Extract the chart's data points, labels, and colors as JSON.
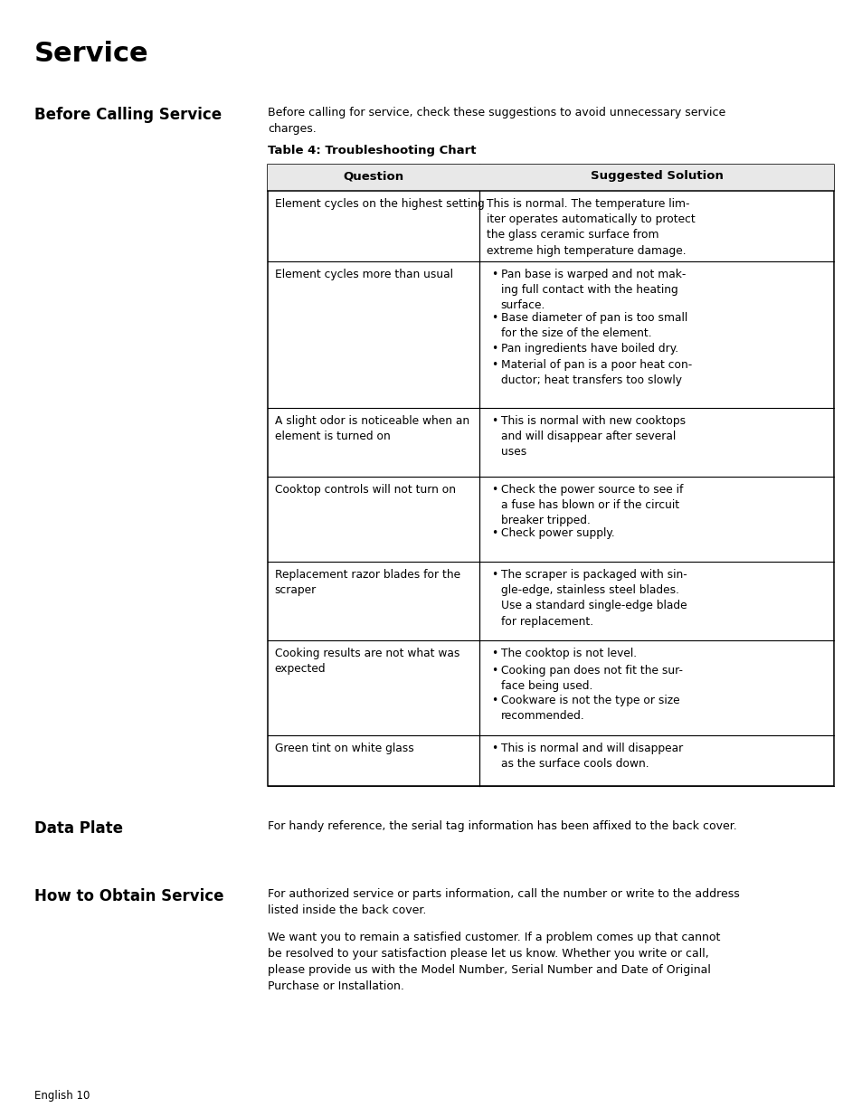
{
  "page_title": "Service",
  "section1_heading": "Before Calling Service",
  "section1_intro": "Before calling for service, check these suggestions to avoid unnecessary service\ncharges.",
  "table_title": "Table 4: Troubleshooting Chart",
  "table_col1_header": "Question",
  "table_col2_header": "Suggested Solution",
  "table_rows": [
    {
      "question": "Element cycles on the highest setting",
      "solution": "This is normal. The temperature lim-\niter operates automatically to protect\nthe glass ceramic surface from\nextreme high temperature damage.",
      "bullets": false
    },
    {
      "question": "Element cycles more than usual",
      "solution_bullets": [
        "Pan base is warped and not mak-\ning full contact with the heating\nsurface.",
        "Base diameter of pan is too small\nfor the size of the element.",
        "Pan ingredients have boiled dry.",
        "Material of pan is a poor heat con-\nductor; heat transfers too slowly"
      ],
      "bullets": true
    },
    {
      "question": "A slight odor is noticeable when an\nelement is turned on",
      "solution_bullets": [
        "This is normal with new cooktops\nand will disappear after several\nuses"
      ],
      "bullets": true
    },
    {
      "question": "Cooktop controls will not turn on",
      "solution_bullets": [
        "Check the power source to see if\na fuse has blown or if the circuit\nbreaker tripped.",
        "Check power supply."
      ],
      "bullets": true
    },
    {
      "question": "Replacement razor blades for the\nscraper",
      "solution_bullets": [
        "The scraper is packaged with sin-\ngle-edge, stainless steel blades.\nUse a standard single-edge blade\nfor replacement."
      ],
      "bullets": true
    },
    {
      "question": "Cooking results are not what was\nexpected",
      "solution_bullets": [
        "The cooktop is not level.",
        "Cooking pan does not fit the sur-\nface being used.",
        "Cookware is not the type or size\nrecommended."
      ],
      "bullets": true
    },
    {
      "question": "Green tint on white glass",
      "solution_bullets": [
        "This is normal and will disappear\nas the surface cools down."
      ],
      "bullets": true
    }
  ],
  "section2_heading": "Data Plate",
  "section2_text": "For handy reference, the serial tag information has been affixed to the back cover.",
  "section3_heading": "How to Obtain Service",
  "section3_text1": "For authorized service or parts information, call the number or write to the address\nlisted inside the back cover.",
  "section3_text2": "We want you to remain a satisfied customer. If a problem comes up that cannot\nbe resolved to your satisfaction please let us know. Whether you write or call,\nplease provide us with the Model Number, Serial Number and Date of Original\nPurchase or Installation.",
  "footer_text": "English 10",
  "bg_color": "#ffffff"
}
